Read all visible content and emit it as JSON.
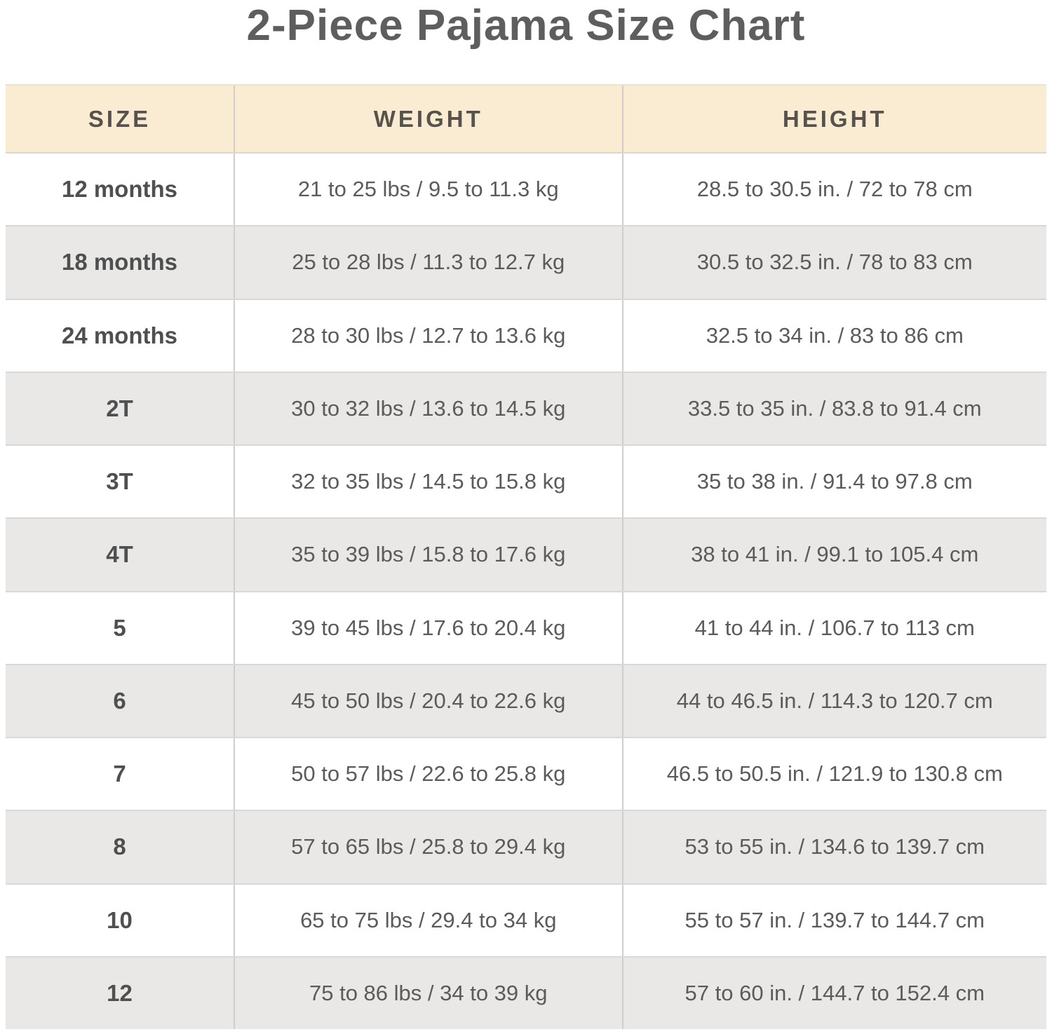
{
  "title": "2-Piece Pajama Size Chart",
  "colors": {
    "header_bg": "#FAECD2",
    "row_bg": "#FFFFFF",
    "row_alt_bg": "#E9E8E6",
    "divider": "#CFCECC",
    "text": "#5B5B5B",
    "header_text": "#57534C",
    "title_text": "#5E5E5E"
  },
  "chart_data": {
    "type": "table",
    "title": "2-Piece Pajama Size Chart",
    "columns": [
      "SIZE",
      "WEIGHT",
      "HEIGHT"
    ],
    "rows": [
      [
        "12 months",
        "21 to 25 lbs / 9.5 to 11.3 kg",
        "28.5 to 30.5 in. / 72 to 78 cm"
      ],
      [
        "18 months",
        "25 to 28 lbs / 11.3 to 12.7 kg",
        "30.5 to 32.5 in. / 78 to 83 cm"
      ],
      [
        "24 months",
        "28 to 30 lbs / 12.7 to 13.6 kg",
        "32.5 to 34 in. / 83 to 86 cm"
      ],
      [
        "2T",
        "30 to 32 lbs / 13.6 to 14.5 kg",
        "33.5 to 35 in. / 83.8 to 91.4 cm"
      ],
      [
        "3T",
        "32 to 35 lbs / 14.5 to 15.8 kg",
        "35 to 38 in. / 91.4 to 97.8 cm"
      ],
      [
        "4T",
        "35 to 39 lbs / 15.8 to 17.6 kg",
        "38 to 41 in. / 99.1 to 105.4 cm"
      ],
      [
        "5",
        "39 to 45 lbs / 17.6 to 20.4 kg",
        "41 to 44 in. / 106.7 to 113 cm"
      ],
      [
        "6",
        "45 to 50 lbs / 20.4 to 22.6 kg",
        "44 to 46.5 in. / 114.3 to 120.7 cm"
      ],
      [
        "7",
        "50 to 57 lbs / 22.6 to 25.8 kg",
        "46.5 to 50.5 in. / 121.9 to 130.8 cm"
      ],
      [
        "8",
        "57 to 65 lbs / 25.8 to 29.4 kg",
        "53 to 55 in. / 134.6 to 139.7 cm"
      ],
      [
        "10",
        "65 to 75 lbs / 29.4 to 34 kg",
        "55 to 57 in. / 139.7 to 144.7 cm"
      ],
      [
        "12",
        "75 to 86 lbs / 34 to 39 kg",
        "57 to 60 in. / 144.7 to 152.4 cm"
      ]
    ],
    "layout": {
      "header_background": "#FAECD2",
      "alternating_rows": true,
      "column_widths_pct": [
        21.9,
        37.3,
        40.8
      ]
    }
  }
}
